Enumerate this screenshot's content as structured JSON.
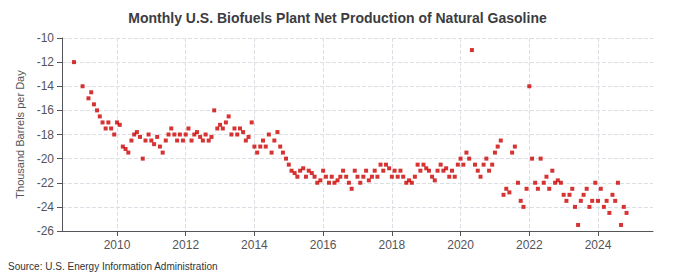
{
  "chart_data": {
    "type": "scatter",
    "title": "Monthly U.S. Biofuels Plant Net Production of Natural Gasoline",
    "ylabel": "Thousand Barrels per Day",
    "annotations": [
      "Source: U.S. Energy Information Administration"
    ],
    "color": "#cc0000",
    "marker": "square",
    "grid": true,
    "xlim": [
      2008.4,
      2025.6
    ],
    "xticks": [
      2010,
      2012,
      2014,
      2016,
      2018,
      2020,
      2022,
      2024
    ],
    "ylim": [
      -26,
      -10
    ],
    "yticks": [
      -10,
      -12,
      -14,
      -16,
      -18,
      -20,
      -22,
      -24,
      -26
    ],
    "x": [
      2008.75,
      2009.0,
      2009.17,
      2009.25,
      2009.33,
      2009.42,
      2009.5,
      2009.58,
      2009.67,
      2009.75,
      2009.83,
      2009.92,
      2010.0,
      2010.08,
      2010.17,
      2010.25,
      2010.33,
      2010.42,
      2010.5,
      2010.58,
      2010.67,
      2010.75,
      2010.83,
      2010.92,
      2011.0,
      2011.08,
      2011.17,
      2011.25,
      2011.33,
      2011.42,
      2011.5,
      2011.58,
      2011.67,
      2011.75,
      2011.83,
      2011.92,
      2012.0,
      2012.08,
      2012.17,
      2012.25,
      2012.33,
      2012.42,
      2012.5,
      2012.58,
      2012.67,
      2012.75,
      2012.83,
      2012.92,
      2013.0,
      2013.08,
      2013.17,
      2013.25,
      2013.33,
      2013.42,
      2013.5,
      2013.58,
      2013.67,
      2013.75,
      2013.83,
      2013.92,
      2014.0,
      2014.08,
      2014.17,
      2014.25,
      2014.33,
      2014.42,
      2014.5,
      2014.58,
      2014.67,
      2014.75,
      2014.83,
      2014.92,
      2015.0,
      2015.08,
      2015.17,
      2015.25,
      2015.33,
      2015.42,
      2015.5,
      2015.58,
      2015.67,
      2015.75,
      2015.83,
      2015.92,
      2016.0,
      2016.08,
      2016.17,
      2016.25,
      2016.33,
      2016.42,
      2016.5,
      2016.58,
      2016.67,
      2016.75,
      2016.83,
      2016.92,
      2017.0,
      2017.08,
      2017.17,
      2017.25,
      2017.33,
      2017.42,
      2017.5,
      2017.58,
      2017.67,
      2017.75,
      2017.83,
      2017.92,
      2018.0,
      2018.08,
      2018.17,
      2018.25,
      2018.33,
      2018.42,
      2018.5,
      2018.58,
      2018.67,
      2018.75,
      2018.83,
      2018.92,
      2019.0,
      2019.08,
      2019.17,
      2019.25,
      2019.33,
      2019.42,
      2019.5,
      2019.58,
      2019.67,
      2019.75,
      2019.83,
      2019.92,
      2020.0,
      2020.08,
      2020.17,
      2020.25,
      2020.33,
      2020.42,
      2020.5,
      2020.58,
      2020.67,
      2020.75,
      2020.83,
      2020.92,
      2021.0,
      2021.08,
      2021.17,
      2021.25,
      2021.33,
      2021.42,
      2021.5,
      2021.58,
      2021.67,
      2021.75,
      2021.83,
      2021.92,
      2022.0,
      2022.08,
      2022.17,
      2022.25,
      2022.33,
      2022.42,
      2022.5,
      2022.58,
      2022.67,
      2022.75,
      2022.83,
      2022.92,
      2023.0,
      2023.08,
      2023.17,
      2023.25,
      2023.33,
      2023.42,
      2023.5,
      2023.58,
      2023.67,
      2023.75,
      2023.83,
      2023.92,
      2024.0,
      2024.08,
      2024.17,
      2024.25,
      2024.33,
      2024.42,
      2024.5,
      2024.58,
      2024.67,
      2024.75,
      2024.83
    ],
    "values": [
      -12.0,
      -14.0,
      -15.0,
      -14.5,
      -15.5,
      -16.0,
      -16.5,
      -17.0,
      -17.5,
      -17.0,
      -17.5,
      -18.0,
      -17.0,
      -17.2,
      -19.0,
      -19.2,
      -19.5,
      -18.5,
      -18.0,
      -17.8,
      -18.2,
      -20.0,
      -18.5,
      -18.0,
      -18.5,
      -18.8,
      -18.2,
      -19.0,
      -19.5,
      -18.5,
      -18.0,
      -17.5,
      -18.0,
      -18.5,
      -18.0,
      -18.5,
      -18.0,
      -17.5,
      -18.5,
      -18.0,
      -17.8,
      -18.2,
      -18.5,
      -18.0,
      -18.5,
      -18.2,
      -16.0,
      -17.5,
      -17.2,
      -17.5,
      -17.0,
      -16.5,
      -18.0,
      -17.5,
      -18.0,
      -17.5,
      -17.8,
      -18.5,
      -18.2,
      -17.0,
      -19.0,
      -19.5,
      -19.0,
      -18.5,
      -19.0,
      -18.0,
      -19.5,
      -18.5,
      -17.8,
      -19.0,
      -19.5,
      -20.0,
      -20.5,
      -21.0,
      -21.2,
      -21.5,
      -21.0,
      -20.8,
      -21.5,
      -21.0,
      -21.2,
      -21.5,
      -22.0,
      -21.8,
      -21.0,
      -21.5,
      -22.0,
      -21.5,
      -22.0,
      -21.8,
      -21.5,
      -21.0,
      -21.5,
      -22.0,
      -22.5,
      -21.0,
      -21.5,
      -22.0,
      -21.5,
      -21.0,
      -21.8,
      -21.5,
      -21.0,
      -21.5,
      -20.5,
      -21.0,
      -20.5,
      -20.8,
      -21.5,
      -21.0,
      -21.5,
      -21.0,
      -21.5,
      -22.0,
      -21.8,
      -22.0,
      -21.5,
      -20.5,
      -21.0,
      -20.5,
      -20.8,
      -21.0,
      -21.5,
      -21.8,
      -21.0,
      -20.5,
      -21.0,
      -20.8,
      -21.5,
      -21.0,
      -21.5,
      -20.5,
      -20.0,
      -20.5,
      -19.5,
      -20.0,
      -11.0,
      -20.5,
      -21.0,
      -21.5,
      -20.5,
      -20.0,
      -21.0,
      -20.5,
      -19.5,
      -19.0,
      -18.5,
      -23.0,
      -22.5,
      -22.8,
      -19.5,
      -19.0,
      -22.0,
      -23.5,
      -24.0,
      -22.5,
      -14.0,
      -20.0,
      -22.0,
      -22.5,
      -20.0,
      -22.0,
      -21.5,
      -22.5,
      -21.0,
      -22.0,
      -21.8,
      -22.0,
      -23.0,
      -23.5,
      -23.0,
      -22.5,
      -24.0,
      -25.5,
      -23.5,
      -23.0,
      -22.5,
      -24.0,
      -23.5,
      -22.0,
      -23.5,
      -22.5,
      -24.0,
      -23.5,
      -24.5,
      -23.0,
      -23.5,
      -22.0,
      -25.5,
      -24.0,
      -24.5
    ]
  }
}
